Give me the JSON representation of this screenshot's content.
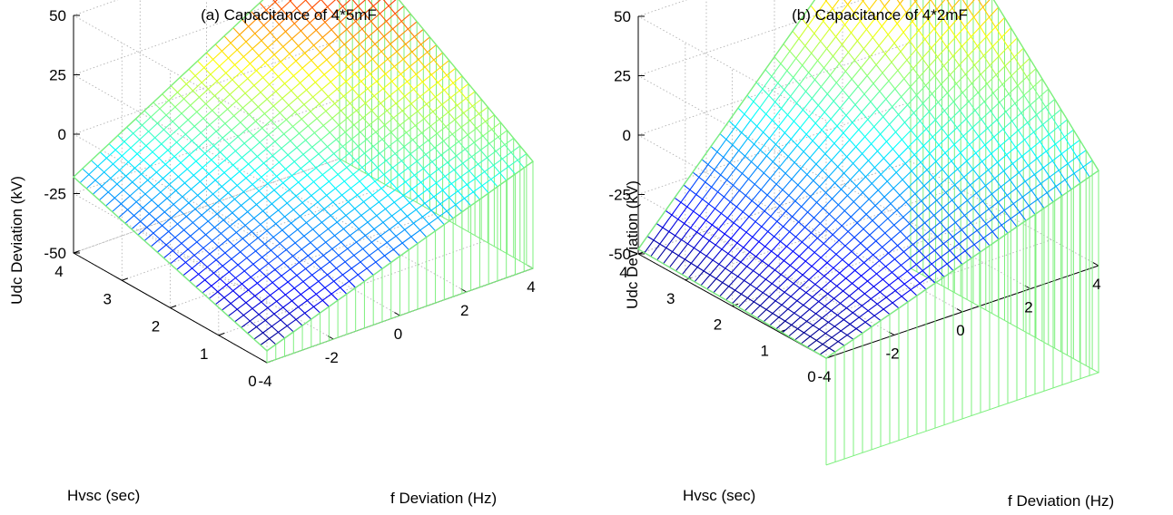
{
  "chart_data": [
    {
      "type": "surface",
      "title": "(a) Capacitance of 4*5mF",
      "xlabel": "f Deviation (Hz)",
      "ylabel": "Hvsc (sec)",
      "zlabel": "Udc Deviation (kV)",
      "x_ticks": [
        "-4",
        "-2",
        "0",
        "2",
        "4"
      ],
      "y_ticks": [
        "0",
        "1",
        "2",
        "3",
        "4"
      ],
      "z_ticks": [
        "-50",
        "-25",
        "0",
        "25",
        "50"
      ],
      "xlim": [
        -4,
        4
      ],
      "ylim": [
        0,
        4
      ],
      "zlim": [
        -50,
        50
      ],
      "grid": true,
      "colormap": "jet",
      "mesh": {
        "x_lines": 31,
        "y_lines": 31
      },
      "corners": [
        {
          "x": -4,
          "y": 0,
          "z": -45
        },
        {
          "x": 4,
          "y": 0,
          "z": -5
        },
        {
          "x": -4,
          "y": 4,
          "z": -18
        },
        {
          "x": 4,
          "y": 4,
          "z": 47
        }
      ],
      "curtain_base_z": -50
    },
    {
      "type": "surface",
      "title": "(b) Capacitance of 4*2mF",
      "xlabel": "f Deviation (Hz)",
      "ylabel": "Hvsc (sec)",
      "zlabel": "Udc Deviation (kV)",
      "x_ticks": [
        "-4",
        "-2",
        "0",
        "2",
        "4"
      ],
      "y_ticks": [
        "0",
        "1",
        "2",
        "3",
        "4"
      ],
      "z_ticks": [
        "-50",
        "-25",
        "0",
        "25",
        "50"
      ],
      "xlim": [
        -4,
        4
      ],
      "ylim": [
        0,
        4
      ],
      "zlim": [
        -50,
        50
      ],
      "grid": true,
      "colormap": "jet",
      "mesh": {
        "x_lines": 31,
        "y_lines": 31
      },
      "corners": [
        {
          "x": -4,
          "y": 0,
          "z": -50
        },
        {
          "x": 4,
          "y": 0,
          "z": -10
        },
        {
          "x": -4,
          "y": 4,
          "z": -48
        },
        {
          "x": 4,
          "y": 4,
          "z": 75
        }
      ],
      "curtain_base_z": -95
    }
  ]
}
